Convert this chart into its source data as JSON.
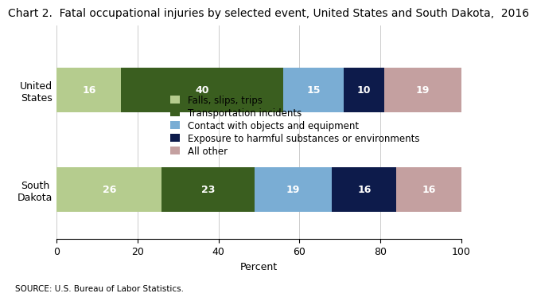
{
  "title": "Chart 2.  Fatal occupational injuries by selected event, United States and South Dakota,  2016",
  "categories": [
    "United\nStates",
    "South\nDakota"
  ],
  "segments": [
    {
      "label": "Falls, slips, trips",
      "color": "#b5cc8e",
      "values": [
        16,
        26
      ]
    },
    {
      "label": "Transportation incidents",
      "color": "#3a5e1f",
      "values": [
        40,
        23
      ]
    },
    {
      "label": "Contact with objects and equipment",
      "color": "#7aadd4",
      "values": [
        15,
        19
      ]
    },
    {
      "label": "Exposure to harmful substances or environments",
      "color": "#0d1b4b",
      "values": [
        10,
        16
      ]
    },
    {
      "label": "All other",
      "color": "#c4a0a0",
      "values": [
        19,
        16
      ]
    }
  ],
  "xlabel": "Percent",
  "xlim": [
    0,
    100
  ],
  "xticks": [
    0,
    20,
    40,
    60,
    80,
    100
  ],
  "source": "SOURCE: U.S. Bureau of Labor Statistics.",
  "title_fontsize": 10,
  "label_fontsize": 9,
  "tick_fontsize": 9,
  "bar_height": 0.45,
  "text_color": "#ffffff",
  "legend_fontsize": 8.5
}
